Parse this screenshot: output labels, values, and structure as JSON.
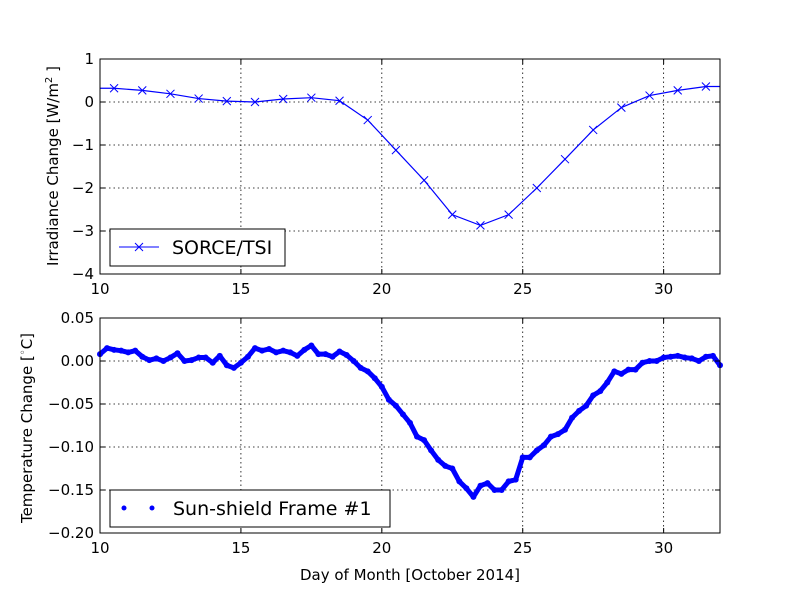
{
  "chart_data": [
    {
      "type": "line",
      "ylabel": "Irradiance Change [W/m",
      "ylabel_sup": "2",
      "ylabel_end": " ]",
      "xlim": [
        10,
        32
      ],
      "ylim": [
        -4,
        1
      ],
      "xticks": [
        "10",
        "15",
        "20",
        "25",
        "30"
      ],
      "yticks": [
        "1",
        "0",
        "−1",
        "−2",
        "−3",
        "−4"
      ],
      "ytick_values": [
        1,
        0,
        -1,
        -2,
        -3,
        -4
      ],
      "xtick_values": [
        10,
        15,
        20,
        25,
        30
      ],
      "grid": true,
      "legend_position": "lower-left",
      "series": [
        {
          "name": "SORCE/TSI",
          "color": "#0000ff",
          "marker": "x",
          "x": [
            10.5,
            11.5,
            12.5,
            13.5,
            14.5,
            15.5,
            16.5,
            17.5,
            18.5,
            19.5,
            20.5,
            21.5,
            22.5,
            23.5,
            24.5,
            25.5,
            26.5,
            27.5,
            28.5,
            29.5,
            30.5,
            31.5
          ],
          "y": [
            0.32,
            0.27,
            0.19,
            0.08,
            0.02,
            0.0,
            0.07,
            0.1,
            0.03,
            -0.42,
            -1.12,
            -1.82,
            -2.62,
            -2.87,
            -2.62,
            -2.0,
            -1.33,
            -0.65,
            -0.13,
            0.15,
            0.27,
            0.36
          ]
        }
      ]
    },
    {
      "type": "scatter",
      "xlabel": "Day of Month [October 2014]",
      "ylabel": "Temperature Change [",
      "ylabel_sup": "◦",
      "ylabel_end": "C]",
      "xlim": [
        10,
        32
      ],
      "ylim": [
        -0.2,
        0.05
      ],
      "xticks": [
        "10",
        "15",
        "20",
        "25",
        "30"
      ],
      "xtick_values": [
        10,
        15,
        20,
        25,
        30
      ],
      "yticks": [
        "0.05",
        "0.00",
        "−0.05",
        "−0.10",
        "−0.15",
        "−0.20"
      ],
      "ytick_values": [
        0.05,
        0,
        -0.05,
        -0.1,
        -0.15,
        -0.2
      ],
      "grid": true,
      "legend_position": "lower-left",
      "series": [
        {
          "name": "Sun-shield Frame #1",
          "color": "#0000ff",
          "marker": "dot",
          "x": [
            10.0,
            10.25,
            10.5,
            10.75,
            11.0,
            11.25,
            11.5,
            11.75,
            12.0,
            12.25,
            12.5,
            12.75,
            13.0,
            13.25,
            13.5,
            13.75,
            14.0,
            14.25,
            14.5,
            14.75,
            15.0,
            15.25,
            15.5,
            15.75,
            16.0,
            16.25,
            16.5,
            16.75,
            17.0,
            17.25,
            17.5,
            17.75,
            18.0,
            18.25,
            18.5,
            18.75,
            19.0,
            19.25,
            19.5,
            19.75,
            20.0,
            20.25,
            20.5,
            20.75,
            21.0,
            21.25,
            21.5,
            21.75,
            22.0,
            22.25,
            22.5,
            22.75,
            23.0,
            23.25,
            23.5,
            23.75,
            24.0,
            24.25,
            24.5,
            24.75,
            25.0,
            25.25,
            25.5,
            25.75,
            26.0,
            26.25,
            26.5,
            26.75,
            27.0,
            27.25,
            27.5,
            27.75,
            28.0,
            28.25,
            28.5,
            28.75,
            29.0,
            29.25,
            29.5,
            29.75,
            30.0,
            30.25,
            30.5,
            30.75,
            31.0,
            31.25,
            31.5,
            31.75,
            32.0
          ],
          "y": [
            0.008,
            0.015,
            0.013,
            0.012,
            0.01,
            0.012,
            0.005,
            0.001,
            0.003,
            0.0,
            0.004,
            0.009,
            0.0,
            0.001,
            0.004,
            0.004,
            -0.002,
            0.006,
            -0.005,
            -0.008,
            -0.002,
            0.005,
            0.015,
            0.012,
            0.014,
            0.01,
            0.012,
            0.01,
            0.006,
            0.013,
            0.018,
            0.008,
            0.008,
            0.005,
            0.011,
            0.007,
            0.0,
            -0.008,
            -0.012,
            -0.02,
            -0.03,
            -0.045,
            -0.052,
            -0.062,
            -0.072,
            -0.088,
            -0.092,
            -0.104,
            -0.115,
            -0.122,
            -0.125,
            -0.14,
            -0.148,
            -0.158,
            -0.145,
            -0.142,
            -0.15,
            -0.15,
            -0.14,
            -0.138,
            -0.112,
            -0.112,
            -0.104,
            -0.098,
            -0.088,
            -0.085,
            -0.08,
            -0.066,
            -0.058,
            -0.052,
            -0.04,
            -0.035,
            -0.025,
            -0.012,
            -0.015,
            -0.01,
            -0.01,
            -0.002,
            0.0,
            0.0,
            0.004,
            0.005,
            0.006,
            0.004,
            0.003,
            0.0,
            0.005,
            0.006,
            -0.005
          ]
        }
      ]
    }
  ]
}
